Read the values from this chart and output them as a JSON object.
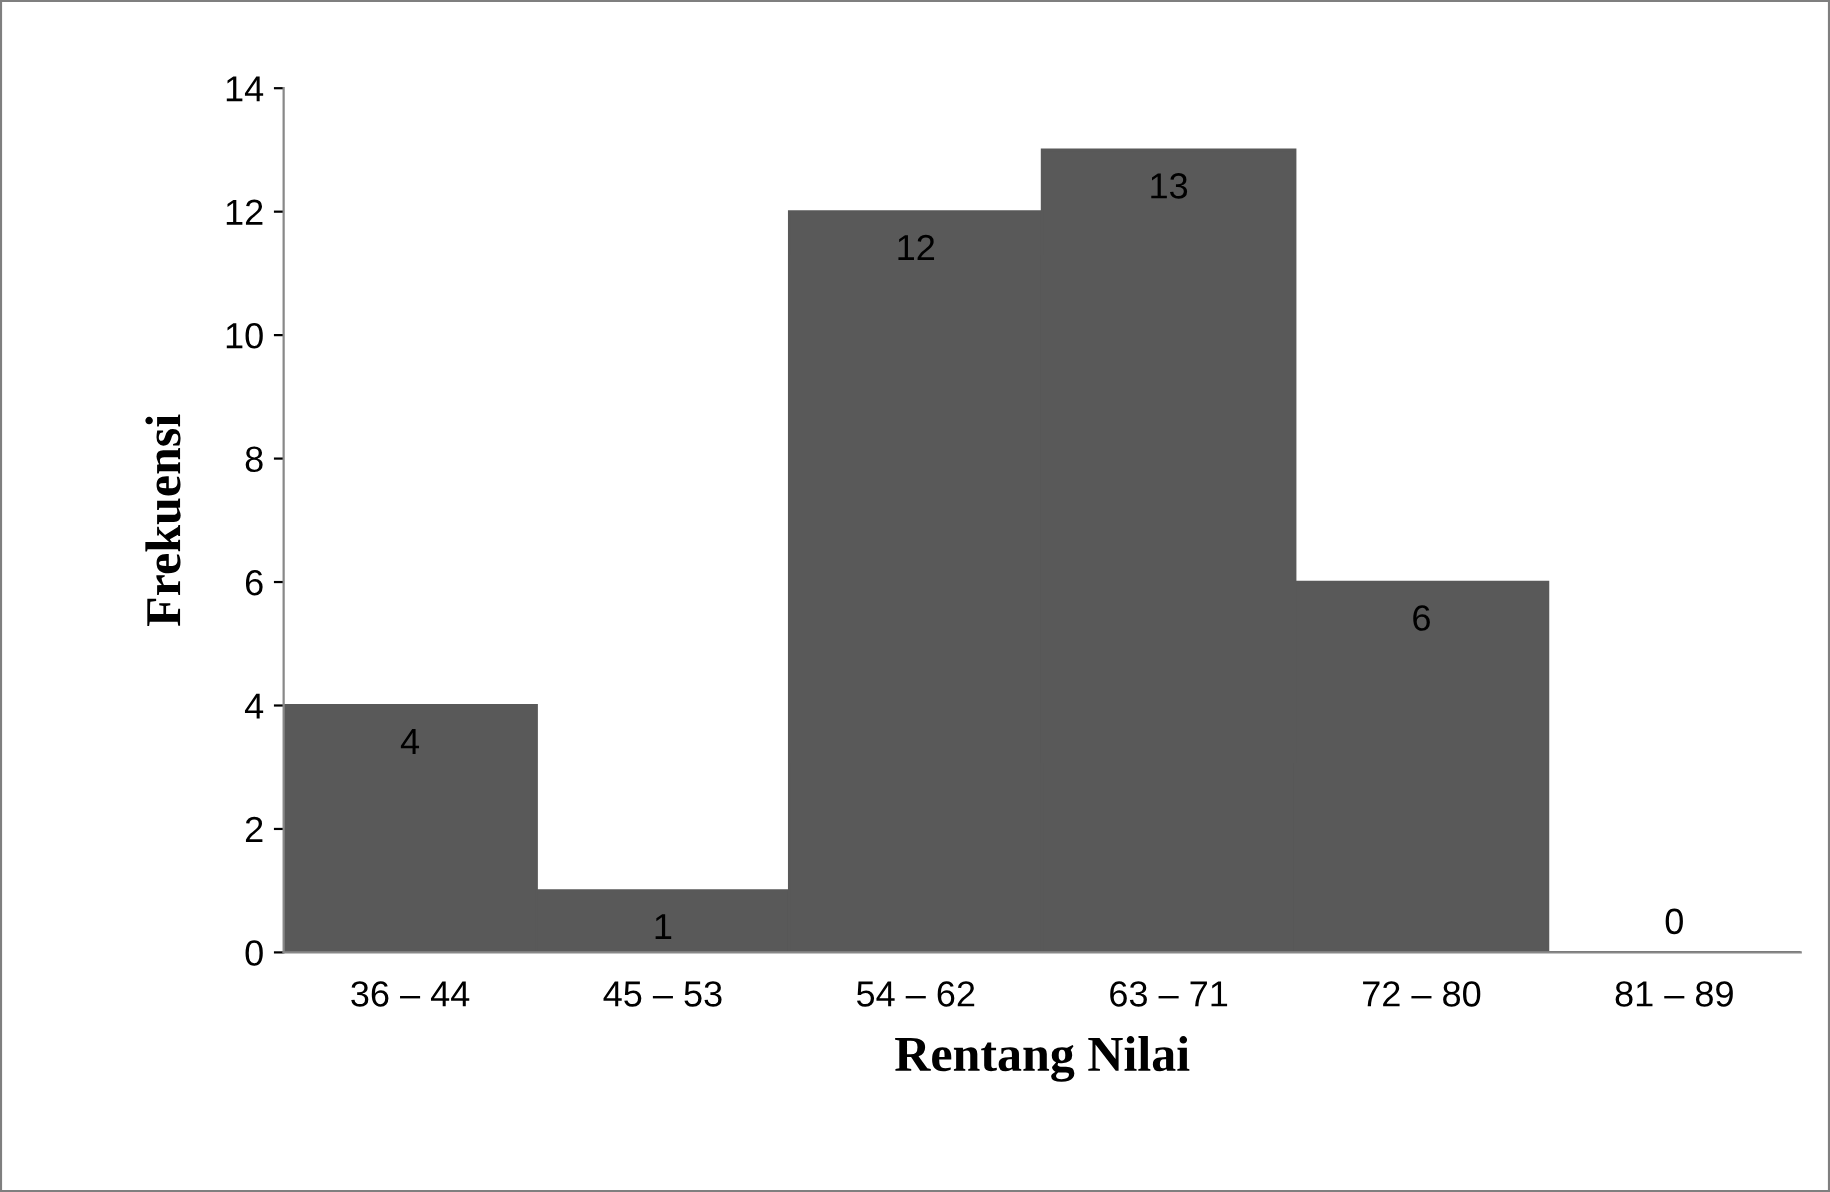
{
  "chart_data": {
    "type": "bar",
    "xlabel": "Rentang Nilai",
    "ylabel": "Frekuensi",
    "categories": [
      "36 – 44",
      "45 – 53",
      "54 – 62",
      "63 – 71",
      "72 – 80",
      "81 – 89"
    ],
    "values": [
      4,
      1,
      12,
      13,
      6,
      0
    ],
    "color": "#595959",
    "ylim": [
      0,
      14
    ],
    "yticks": [
      0,
      2,
      4,
      6,
      8,
      10,
      12,
      14
    ],
    "grid": false,
    "data_labels": true
  }
}
